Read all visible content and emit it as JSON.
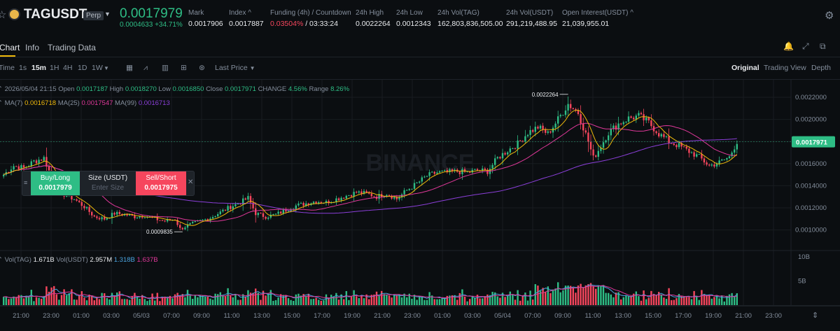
{
  "header": {
    "symbol": "TAGUSDT",
    "contract_type": "Perp",
    "last_price": "0.0017979",
    "change_abs": "0.0004633",
    "change_pct": "+34.71%",
    "stats": [
      {
        "label": "Mark",
        "value": "0.0017906"
      },
      {
        "label": "Index",
        "value": "0.0017887"
      },
      {
        "label": "Funding (4h) / Countdown",
        "value": "0.03504%",
        "value2": "/ 03:33:24"
      },
      {
        "label": "24h High",
        "value": "0.0022264"
      },
      {
        "label": "24h Low",
        "value": "0.0012343"
      },
      {
        "label": "24h Vol(TAG)",
        "value": "162,803,836,505.00"
      },
      {
        "label": "24h Vol(USDT)",
        "value": "291,219,488.95"
      },
      {
        "label": "Open Interest(USDT)",
        "value": "21,039,955.01"
      }
    ]
  },
  "tabs": [
    "Chart",
    "Info",
    "Trading Data"
  ],
  "toolbar": {
    "intervals": [
      "Time",
      "1s",
      "15m",
      "1H",
      "4H",
      "1D",
      "1W"
    ],
    "active_interval": "15m",
    "price_type": "Last Price",
    "views": [
      "Original",
      "Trading View",
      "Depth"
    ],
    "active_view": "Original"
  },
  "info_line": {
    "datetime": "2026/05/04 21:15",
    "open_label": "Open",
    "open": "0.0017187",
    "high_label": "High",
    "high": "0.0018270",
    "low_label": "Low",
    "low": "0.0016850",
    "close_label": "Close",
    "close": "0.0017971",
    "change_label": "CHANGE",
    "change": "4.56%",
    "range_label": "Range",
    "range": "8.26%"
  },
  "ma_line": {
    "ma7_label": "MA(7)",
    "ma7": "0.0016718",
    "ma25_label": "MA(25)",
    "ma25": "0.0017547",
    "ma99_label": "MA(99)",
    "ma99": "0.0016713"
  },
  "vol_line": {
    "vol_tag_label": "Vol(TAG)",
    "vol_tag": "1.671B",
    "vol_usdt_label": "Vol(USDT)",
    "vol_usdt": "2.957M",
    "ma_a": "1.318B",
    "ma_b": "1.637B"
  },
  "order_box": {
    "buy_label": "Buy/Long",
    "buy_price": "0.0017979",
    "size_label": "Size (USDT)",
    "size_placeholder": "Enter Size",
    "sell_label": "Sell/Short",
    "sell_price": "0.0017975"
  },
  "watermark": "BINANCE",
  "colors": {
    "up": "#2ebd85",
    "down": "#f6465d",
    "ma7": "#f0b90b",
    "ma25": "#e0389a",
    "ma99": "#8b3fd9",
    "accent": "#f0b90b"
  },
  "chart_data": {
    "type": "candlestick",
    "price_axis_ticks": [
      "0.0022000",
      "0.0020000",
      "0.0018000",
      "0.0016000",
      "0.0014000",
      "0.0012000",
      "0.0010000"
    ],
    "price_axis_range": [
      0.00089,
      0.00232
    ],
    "volume_axis_ticks": [
      "10B",
      "5B"
    ],
    "volume_axis_range": [
      0,
      11
    ],
    "time_labels": [
      "21:00",
      "23:00",
      "01:00",
      "03:00",
      "05/03",
      "07:00",
      "09:00",
      "11:00",
      "13:00",
      "15:00",
      "17:00",
      "19:00",
      "21:00",
      "23:00",
      "01:00",
      "03:00",
      "05/04",
      "07:00",
      "09:00",
      "11:00",
      "13:00",
      "15:00",
      "17:00",
      "19:00",
      "21:00",
      "23:00"
    ],
    "current_price": "0.0017971",
    "high_marker": "0.0022264",
    "low_marker": "0.0009835",
    "anchors": [
      [
        0,
        0.0015
      ],
      [
        4,
        0.00158
      ],
      [
        8,
        0.00156
      ],
      [
        12,
        0.00162
      ],
      [
        16,
        0.00165
      ],
      [
        20,
        0.00142
      ],
      [
        24,
        0.00132
      ],
      [
        28,
        0.00128
      ],
      [
        32,
        0.00121
      ],
      [
        36,
        0.00112
      ],
      [
        40,
        0.0011
      ],
      [
        44,
        0.00115
      ],
      [
        48,
        0.00114
      ],
      [
        52,
        0.00112
      ],
      [
        56,
        0.00113
      ],
      [
        60,
        0.0011
      ],
      [
        64,
        0.00108
      ],
      [
        68,
        0.0011
      ],
      [
        70,
        0.00101
      ],
      [
        73,
        0.00104
      ],
      [
        78,
        0.00108
      ],
      [
        82,
        0.00111
      ],
      [
        86,
        0.00116
      ],
      [
        90,
        0.00121
      ],
      [
        94,
        0.00125
      ],
      [
        97,
        0.00129
      ],
      [
        100,
        0.00115
      ],
      [
        104,
        0.00112
      ],
      [
        108,
        0.00114
      ],
      [
        112,
        0.00118
      ],
      [
        116,
        0.00122
      ],
      [
        120,
        0.00124
      ],
      [
        124,
        0.00126
      ],
      [
        128,
        0.00125
      ],
      [
        132,
        0.00128
      ],
      [
        136,
        0.00131
      ],
      [
        140,
        0.00134
      ],
      [
        144,
        0.00133
      ],
      [
        148,
        0.0013
      ],
      [
        152,
        0.00133
      ],
      [
        156,
        0.00128
      ],
      [
        160,
        0.00136
      ],
      [
        164,
        0.00142
      ],
      [
        168,
        0.00149
      ],
      [
        172,
        0.00152
      ],
      [
        176,
        0.00152
      ],
      [
        180,
        0.00153
      ],
      [
        184,
        0.00152
      ],
      [
        188,
        0.00154
      ],
      [
        192,
        0.00153
      ],
      [
        196,
        0.00165
      ],
      [
        200,
        0.00172
      ],
      [
        204,
        0.00178
      ],
      [
        208,
        0.00188
      ],
      [
        212,
        0.00193
      ],
      [
        216,
        0.00187
      ],
      [
        220,
        0.002
      ],
      [
        224,
        0.00214
      ],
      [
        228,
        0.00206
      ],
      [
        232,
        0.0018
      ],
      [
        234,
        0.00165
      ],
      [
        236,
        0.00172
      ],
      [
        240,
        0.00188
      ],
      [
        244,
        0.00196
      ],
      [
        248,
        0.00201
      ],
      [
        252,
        0.00203
      ],
      [
        256,
        0.00197
      ],
      [
        260,
        0.00187
      ],
      [
        264,
        0.0018
      ],
      [
        268,
        0.00176
      ],
      [
        272,
        0.00171
      ],
      [
        276,
        0.00166
      ],
      [
        280,
        0.00158
      ],
      [
        284,
        0.00161
      ],
      [
        288,
        0.00166
      ],
      [
        291,
        0.0018
      ]
    ]
  }
}
